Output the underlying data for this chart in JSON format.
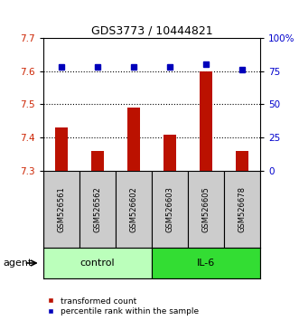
{
  "title": "GDS3773 / 10444821",
  "samples": [
    "GSM526561",
    "GSM526562",
    "GSM526602",
    "GSM526603",
    "GSM526605",
    "GSM526678"
  ],
  "groups": [
    {
      "label": "control",
      "indices": [
        0,
        1,
        2
      ],
      "color": "#bbffbb"
    },
    {
      "label": "IL-6",
      "indices": [
        3,
        4,
        5
      ],
      "color": "#33dd33"
    }
  ],
  "bar_values": [
    7.43,
    7.36,
    7.49,
    7.41,
    7.6,
    7.36
  ],
  "bar_color": "#bb1100",
  "percentile_values": [
    78,
    78,
    78,
    78,
    80,
    76
  ],
  "dot_color": "#0000bb",
  "ylim_left": [
    7.3,
    7.7
  ],
  "ylim_right": [
    0,
    100
  ],
  "yticks_left": [
    7.3,
    7.4,
    7.5,
    7.6,
    7.7
  ],
  "yticks_right": [
    0,
    25,
    50,
    75,
    100
  ],
  "ytick_labels_right": [
    "0",
    "25",
    "50",
    "75",
    "100%"
  ],
  "grid_values": [
    7.4,
    7.5,
    7.6
  ],
  "agent_label": "agent",
  "bar_width": 0.35,
  "legend_items": [
    {
      "label": "transformed count",
      "color": "#bb1100"
    },
    {
      "label": "percentile rank within the sample",
      "color": "#0000bb"
    }
  ]
}
